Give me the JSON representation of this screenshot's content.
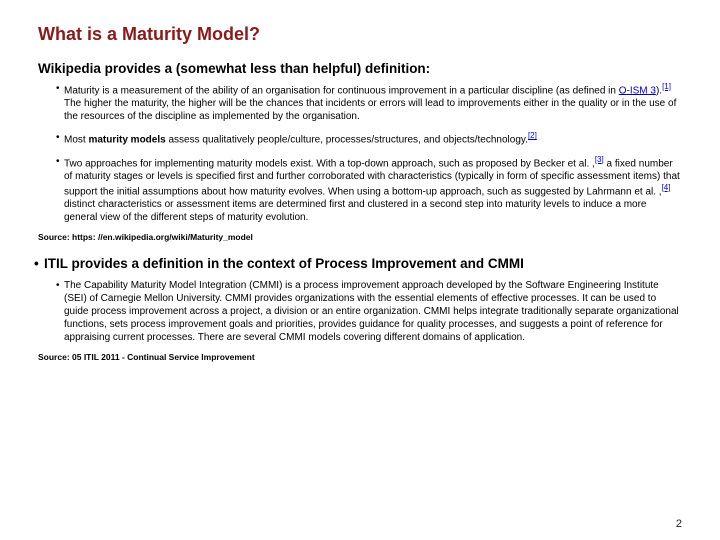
{
  "title": "What is a Maturity Model?",
  "sub1": "Wikipedia provides a (somewhat less than helpful) definition:",
  "b1a": "Maturity is a measurement of the ability of an organisation for continuous improvement in a particular discipline (as defined in ",
  "b1_link": "O-ISM 3",
  "b1b": ").",
  "b1_ref1": "[1]",
  "b1c": " The higher the maturity, the higher will be the chances that incidents or errors will lead to improvements either in the quality or in the use of the resources of the discipline as implemented by the organisation.",
  "b2a": "Most ",
  "b2_bold": "maturity models",
  "b2b": " assess qualitatively people/culture, processes/structures, and objects/technology.",
  "b2_ref": "[2]",
  "b3a": "Two approaches for implementing maturity models exist. With a top-down approach, such as proposed by Becker et al. ,",
  "b3_ref1": "[3]",
  "b3b": " a fixed number of maturity stages or levels is specified first and further corroborated with characteristics (typically in form of specific assessment items) that support the initial assumptions about how maturity evolves. When using a bottom-up approach, such as suggested by Lahrmann et al. ,",
  "b3_ref2": "[4]",
  "b3c": " distinct characteristics or assessment items are determined first and clustered in a second step into maturity levels to induce a more general view of the different steps of maturity evolution.",
  "source1": "Source: https: //en.wikipedia.org/wiki/Maturity_model",
  "sub2": "ITIL provides a definition in the context of Process Improvement and CMMI",
  "b4": "The Capability Maturity Model Integration (CMMI) is a process improvement approach developed by the Software Engineering Institute (SEI) of Carnegie Mellon University. CMMI provides organizations with the essential elements of effective processes. It can be used to guide process improvement across a project, a division or an entire organization. CMMI helps integrate traditionally separate organizational functions, sets process improvement goals and priorities, provides guidance for quality processes, and suggests a point of reference for appraising current processes. There are several CMMI models covering different domains of application.",
  "source2": "Source: 05 ITIL 2011 - Continual Service Improvement",
  "pagenum": "2"
}
